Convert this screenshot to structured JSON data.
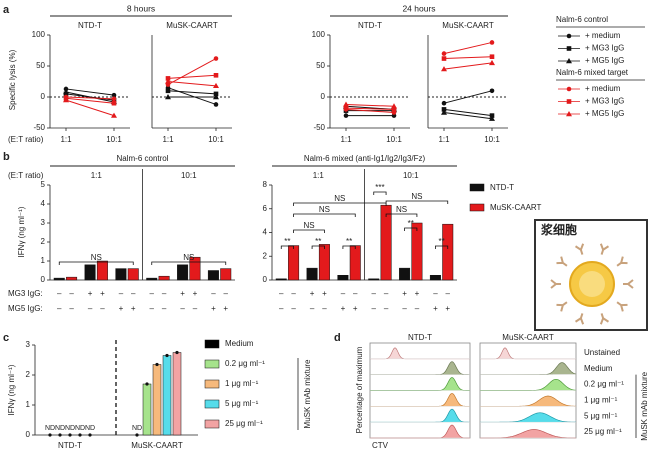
{
  "panel_labels": [
    "a",
    "b",
    "c",
    "d"
  ],
  "chart_data": [
    {
      "type": "line",
      "ylabel": "Specific lysis (%)",
      "xlabel": "(E:T ratio)",
      "group_titles": [
        "8 hours",
        "24 hours"
      ],
      "legend_groups": [
        "Nalm-6 control",
        "Nalm-6 mixed target"
      ],
      "categories": [
        "1:1",
        "10:1"
      ],
      "ylim": [
        -50,
        100
      ],
      "yticks": [
        -50,
        0,
        50,
        100
      ],
      "series": [
        {
          "name": "+ medium",
          "color": "#111111",
          "marker": "circle"
        },
        {
          "name": "+ MG3 IgG",
          "color": "#111111",
          "marker": "square"
        },
        {
          "name": "+ MG5 IgG",
          "color": "#111111",
          "marker": "triangle"
        },
        {
          "name": "+ medium",
          "color": "#e31a1c",
          "marker": "circle"
        },
        {
          "name": "+ MG3 IgG",
          "color": "#e31a1c",
          "marker": "square"
        },
        {
          "name": "+ MG5 IgG",
          "color": "#e31a1c",
          "marker": "triangle"
        }
      ],
      "subplots": [
        {
          "title": "NTD-T",
          "values": [
            [
              13,
              3
            ],
            [
              5,
              -5
            ],
            [
              8,
              -8
            ],
            [
              0,
              -3
            ],
            [
              -2,
              -10
            ],
            [
              -5,
              -30
            ]
          ]
        },
        {
          "title": "MuSK-CAART",
          "values": [
            [
              15,
              -12
            ],
            [
              10,
              5
            ],
            [
              0,
              0
            ],
            [
              20,
              62
            ],
            [
              30,
              35
            ],
            [
              25,
              18
            ]
          ]
        },
        {
          "title": "NTD-T",
          "values": [
            [
              -30,
              -30
            ],
            [
              -22,
              -22
            ],
            [
              -15,
              -20
            ],
            [
              -20,
              -25
            ],
            [
              -18,
              -20
            ],
            [
              -12,
              -15
            ]
          ]
        },
        {
          "title": "MuSK-CAART",
          "values": [
            [
              -10,
              10
            ],
            [
              -20,
              -30
            ],
            [
              -25,
              -35
            ],
            [
              70,
              88
            ],
            [
              62,
              65
            ],
            [
              45,
              55
            ]
          ]
        }
      ]
    },
    {
      "type": "bar",
      "title": "Nalm-6 control",
      "ylabel": "IFNγ (ng ml⁻¹)",
      "xlabel": "(E:T ratio)",
      "groups": [
        "1:1",
        "10:1"
      ],
      "row_labels": [
        "MG3 IgG:",
        "MG5 IgG:"
      ],
      "mg3": [
        "–",
        "–",
        "+",
        "+",
        "–",
        "–",
        "–",
        "–",
        "+",
        "+",
        "–",
        "–"
      ],
      "mg5": [
        "–",
        "–",
        "–",
        "–",
        "+",
        "+",
        "–",
        "–",
        "–",
        "–",
        "+",
        "+"
      ],
      "ylim": [
        0,
        5
      ],
      "yticks": [
        0,
        1,
        2,
        3,
        4,
        5
      ],
      "series": [
        {
          "color": "#111111",
          "values": [
            0.1,
            0.8,
            0.6,
            0.1,
            0.8,
            0.5
          ]
        },
        {
          "color": "#e31a1c",
          "values": [
            0.15,
            1.0,
            0.6,
            0.2,
            1.2,
            0.6
          ]
        }
      ],
      "annotations": [
        "NS",
        "NS"
      ]
    },
    {
      "type": "bar",
      "title": "Nalm-6 mixed (anti-Ig1/Ig2/Ig3/Fz)",
      "groups": [
        "1:1",
        "10:1"
      ],
      "mg3": [
        "–",
        "–",
        "+",
        "+",
        "–",
        "–",
        "–",
        "–",
        "+",
        "+",
        "–",
        "–"
      ],
      "mg5": [
        "–",
        "–",
        "–",
        "–",
        "+",
        "+",
        "–",
        "–",
        "–",
        "–",
        "+",
        "+"
      ],
      "ylim": [
        0,
        8
      ],
      "yticks": [
        0,
        2,
        4,
        6,
        8
      ],
      "series": [
        {
          "name": "NTD-T",
          "color": "#111111",
          "values": [
            0.1,
            1.0,
            0.4,
            0.1,
            1.0,
            0.4
          ]
        },
        {
          "name": "MuSK-CAART",
          "color": "#e31a1c",
          "values": [
            2.9,
            3.0,
            2.9,
            6.3,
            4.8,
            4.7
          ]
        }
      ],
      "annotations": [
        "NS",
        "NS",
        "NS",
        "**",
        "**",
        "**",
        "***",
        "NS",
        "NS",
        "**",
        "**"
      ]
    },
    {
      "type": "bar",
      "ylabel": "IFNγ (ng ml⁻¹)",
      "legend_title": "MuSK mAb mixture",
      "categories": [
        "NTD-T",
        "MuSK-CAART"
      ],
      "ylim": [
        0,
        3
      ],
      "yticks": [
        0,
        1,
        2,
        3
      ],
      "series": [
        {
          "name": "Medium",
          "color": "#000000",
          "values": [
            null,
            null
          ],
          "value_labels": [
            "ND",
            "ND"
          ]
        },
        {
          "name": "0.2 μg ml⁻¹",
          "color": "#a6e38c",
          "values": [
            null,
            1.7
          ],
          "value_labels": [
            "ND",
            null
          ]
        },
        {
          "name": "1 μg ml⁻¹",
          "color": "#f6b97c",
          "values": [
            null,
            2.35
          ],
          "value_labels": [
            "ND",
            null
          ]
        },
        {
          "name": "5 μg ml⁻¹",
          "color": "#56dcea",
          "values": [
            null,
            2.65
          ],
          "value_labels": [
            "ND",
            null
          ]
        },
        {
          "name": "25 μg ml⁻¹",
          "color": "#f2a3a3",
          "values": [
            null,
            2.75
          ],
          "value_labels": [
            "ND",
            null
          ]
        }
      ]
    }
  ],
  "cartoon_label": "浆细胞",
  "panel_d": {
    "columns": [
      "NTD-T",
      "MuSK-CAART"
    ],
    "rows": [
      "Unstained",
      "Medium",
      "0.2 μg ml⁻¹",
      "1 μg ml⁻¹",
      "5 μg ml⁻¹",
      "25 μg ml⁻¹"
    ],
    "xlabel": "CTV",
    "ylabel": "Percentage of maximum",
    "group_label": "MuSK mAb mixture"
  }
}
